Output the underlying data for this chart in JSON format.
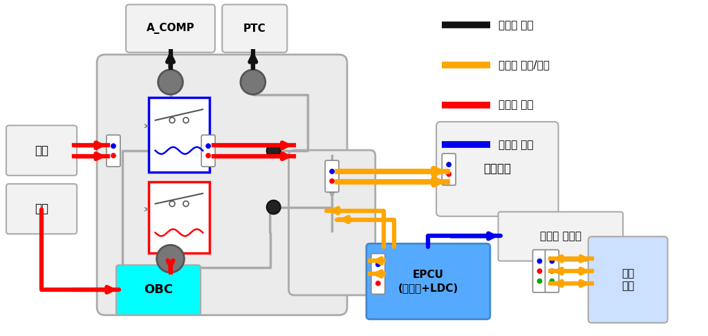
{
  "fig_width": 10.24,
  "fig_height": 4.86,
  "dpi": 100,
  "bg_color": "#ffffff",
  "legend_items": [
    {
      "label": "고전압 출력",
      "color": "#111111"
    },
    {
      "label": "고전압 충전/출력",
      "color": "#FFA500"
    },
    {
      "label": "고전압 충전",
      "color": "#FF0000"
    },
    {
      "label": "저전압 출력",
      "color": "#0000EE"
    }
  ],
  "colors": {
    "gray_box": "#e8e8e8",
    "gray_border": "#aaaaaa",
    "light_box": "#f2f2f2",
    "obc_fill": "#00FFFF",
    "epcu_fill": "#55AAFF",
    "motor_fill": "#cce0ff",
    "black": "#111111",
    "orange": "#FFA500",
    "red": "#FF0000",
    "blue": "#0000EE",
    "gray_line": "#aaaaaa",
    "dark_gray_circle": "#666666"
  }
}
